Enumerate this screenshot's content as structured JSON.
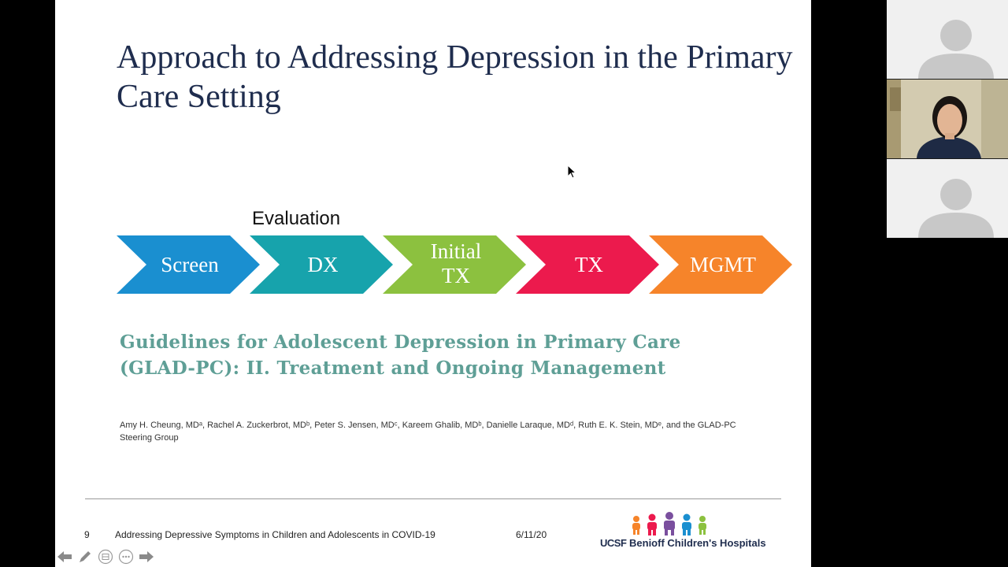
{
  "slide": {
    "title": "Approach to Addressing Depression in the Primary Care Setting",
    "evaluation_label": "Evaluation",
    "steps": [
      {
        "label_line1": "Screen",
        "label_line2": "",
        "color": "#1a8fd0"
      },
      {
        "label_line1": "DX",
        "label_line2": "",
        "color": "#17a3ac"
      },
      {
        "label_line1": "Initial",
        "label_line2": "TX",
        "color": "#8cc13f"
      },
      {
        "label_line1": "TX",
        "label_line2": "",
        "color": "#ec1a4d"
      },
      {
        "label_line1": "MGMT",
        "label_line2": "",
        "color": "#f6842a"
      }
    ],
    "guideline_title": "Guidelines for Adolescent Depression in Primary Care (GLAD-PC): II. Treatment and Ongoing Management",
    "authors": "Amy H. Cheung, MDᵃ, Rachel A. Zuckerbrot, MDᵇ, Peter S. Jensen, MDᶜ, Kareem Ghalib, MDᵇ, Danielle Laraque, MDᵈ, Ruth E. K. Stein, MDᵉ, and the GLAD-PC Steering Group"
  },
  "footer": {
    "page_number": "9",
    "title": "Addressing Depressive Symptoms in Children and Adolescents in COVID-19",
    "date": "6/11/20",
    "logo_ucsf": "UCSF",
    "logo_name": "Benioff Children's Hospitals"
  },
  "controls": [
    {
      "name": "previous-slide",
      "icon": "arrow-left-icon"
    },
    {
      "name": "pen-tool",
      "icon": "pen-icon"
    },
    {
      "name": "slide-sorter",
      "icon": "grid-icon"
    },
    {
      "name": "more-options",
      "icon": "ellipsis-icon"
    },
    {
      "name": "next-slide",
      "icon": "arrow-right-icon"
    }
  ],
  "colors": {
    "title": "#1f2d4e",
    "guideline_title": "#5f9f96",
    "logo_figures": [
      "#f6842a",
      "#ec1a4d",
      "#7a4f9e",
      "#1a8fd0",
      "#8cc13f"
    ]
  }
}
